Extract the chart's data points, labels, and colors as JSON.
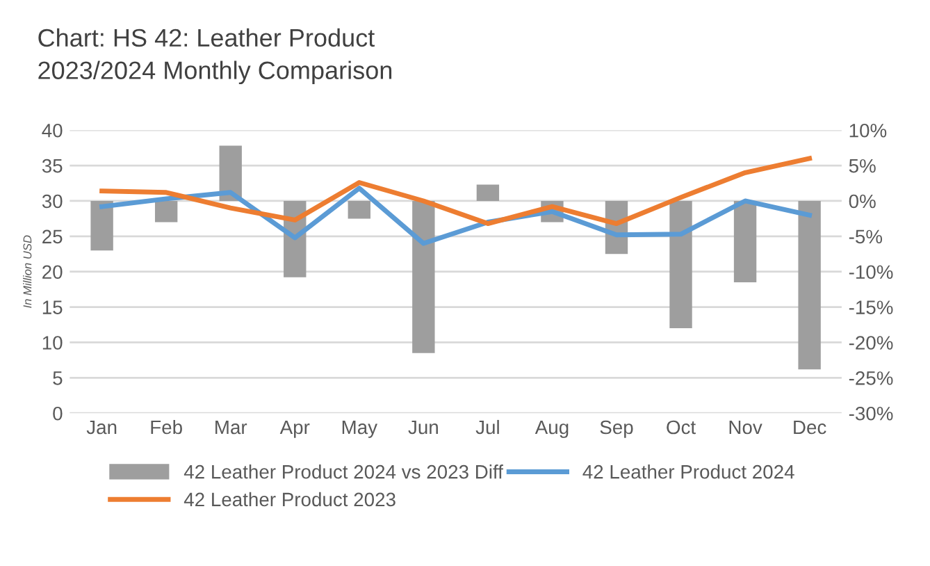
{
  "chart_data": {
    "type": "bar",
    "title": "Chart: HS 42: Leather Product\n2023/2024 Monthly Comparison",
    "ylabel": "In Million USD",
    "categories": [
      "Jan",
      "Feb",
      "Mar",
      "Apr",
      "May",
      "Jun",
      "Jul",
      "Aug",
      "Sep",
      "Oct",
      "Nov",
      "Dec"
    ],
    "series": [
      {
        "name": "42 Leather Product 2024 vs 2023 Diff",
        "axis": "y2",
        "color": "#9e9e9e",
        "values": [
          -7,
          -3,
          7.8,
          -10.8,
          -2.5,
          -21.5,
          2.3,
          -3,
          -7.5,
          -18,
          -11.5,
          -23.8
        ]
      },
      {
        "name": "42 Leather Product 2024",
        "type": "line",
        "color": "#5b9bd5",
        "values": [
          29.2,
          30.3,
          31.2,
          24.8,
          31.8,
          24.0,
          27.0,
          28.5,
          25.2,
          25.3,
          30.0,
          28.0
        ]
      },
      {
        "name": "42 Leather Product 2023",
        "type": "line",
        "color": "#ed7d31",
        "values": [
          31.4,
          31.2,
          29.0,
          27.3,
          32.6,
          30.0,
          26.8,
          29.2,
          26.8,
          30.5,
          34.0,
          36.0
        ]
      }
    ],
    "ylim": [
      0,
      40
    ],
    "yticks": [
      0,
      5,
      10,
      15,
      20,
      25,
      30,
      35,
      40
    ],
    "y2lim": [
      -30,
      10
    ],
    "y2ticks": [
      {
        "value": -30,
        "label": "-30%"
      },
      {
        "value": -25,
        "label": "-25%"
      },
      {
        "value": -20,
        "label": "-20%"
      },
      {
        "value": -15,
        "label": "-15%"
      },
      {
        "value": -10,
        "label": "-10%"
      },
      {
        "value": -5,
        "label": "-5%"
      },
      {
        "value": 0,
        "label": "0%"
      },
      {
        "value": 5,
        "label": "5%"
      },
      {
        "value": 10,
        "label": "10%"
      }
    ],
    "grid": "y",
    "legend": "bottom",
    "marker": "none",
    "line_style": "solid"
  }
}
